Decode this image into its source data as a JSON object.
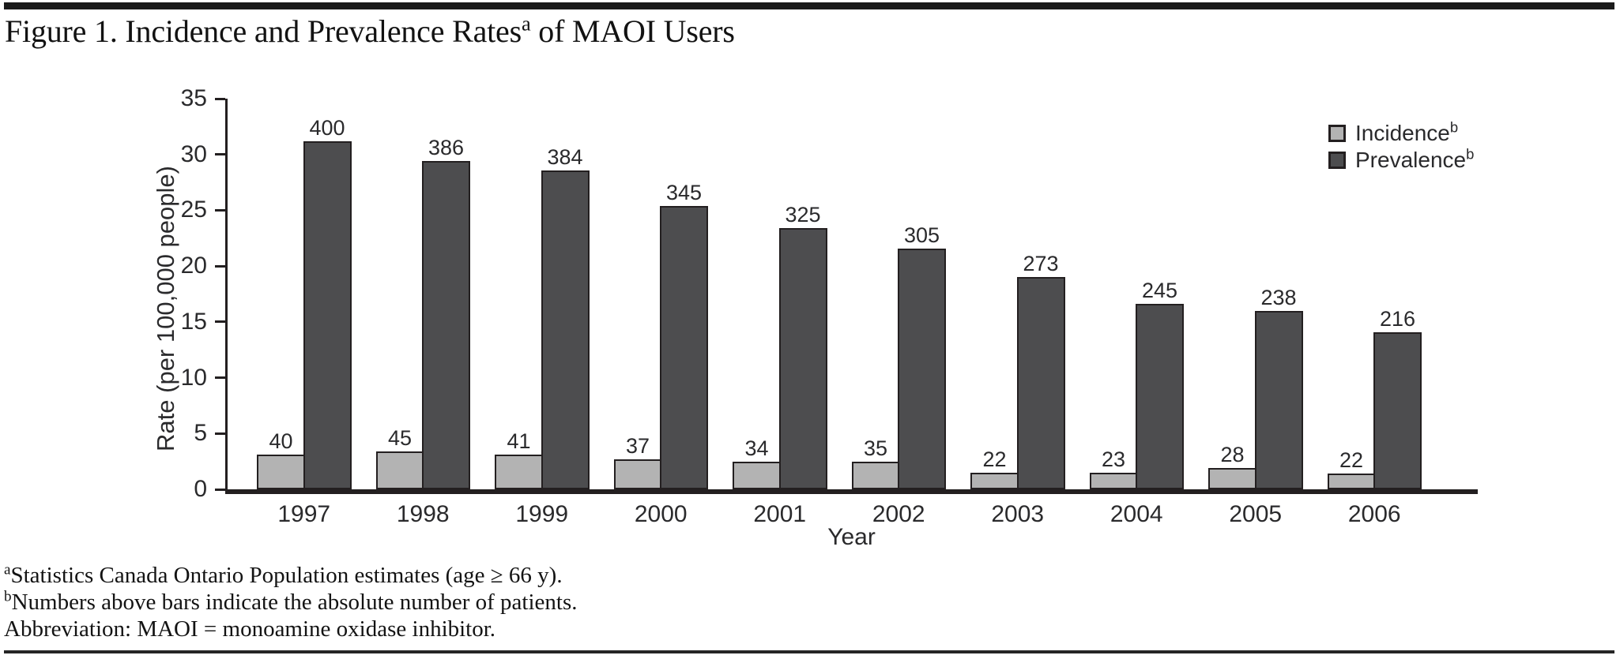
{
  "figure_title": {
    "prefix": "Figure 1. Incidence and Prevalence Rates",
    "sup": "a",
    "suffix": " of MAOI Users"
  },
  "legend": [
    {
      "label": "Incidence",
      "sup": "b"
    },
    {
      "label": "Prevalence",
      "sup": "b"
    }
  ],
  "footnotes": [
    {
      "sup": "a",
      "text": "Statistics Canada Ontario Population estimates (age ≥ 66 y)."
    },
    {
      "sup": "b",
      "text": "Numbers above bars indicate the absolute number of patients."
    },
    {
      "sup": "",
      "text": "Abbreviation: MAOI = monoamine oxidase inhibitor."
    }
  ],
  "chart_data": {
    "type": "bar",
    "title": "Figure 1. Incidence and Prevalence Rates(a) of MAOI Users",
    "categories": [
      "1997",
      "1998",
      "1999",
      "2000",
      "2001",
      "2002",
      "2003",
      "2004",
      "2005",
      "2006"
    ],
    "series": [
      {
        "name": "Incidence",
        "sup": "b",
        "color": "#b3b3b3",
        "values": [
          3.1,
          3.4,
          3.1,
          2.7,
          2.5,
          2.45,
          1.5,
          1.5,
          1.9,
          1.4
        ],
        "bar_labels": [
          40,
          45,
          41,
          37,
          34,
          35,
          22,
          23,
          28,
          22
        ]
      },
      {
        "name": "Prevalence",
        "sup": "b",
        "color": "#4d4d4f",
        "values": [
          31.2,
          29.4,
          28.6,
          25.4,
          23.4,
          21.6,
          19.0,
          16.6,
          16.0,
          14.1
        ],
        "bar_labels": [
          400,
          386,
          384,
          345,
          325,
          305,
          273,
          245,
          238,
          216
        ]
      }
    ],
    "xlabel": "Year",
    "ylabel": "Rate (per 100,000 people)",
    "ylim": [
      0,
      35
    ],
    "ytick_step": 5,
    "grid": false,
    "legend_position": "top-right-inside",
    "bar_label_note": "Numbers above bars are absolute patient counts; bar heights are rates per 100,000",
    "bar_border_color": "#231f20"
  }
}
